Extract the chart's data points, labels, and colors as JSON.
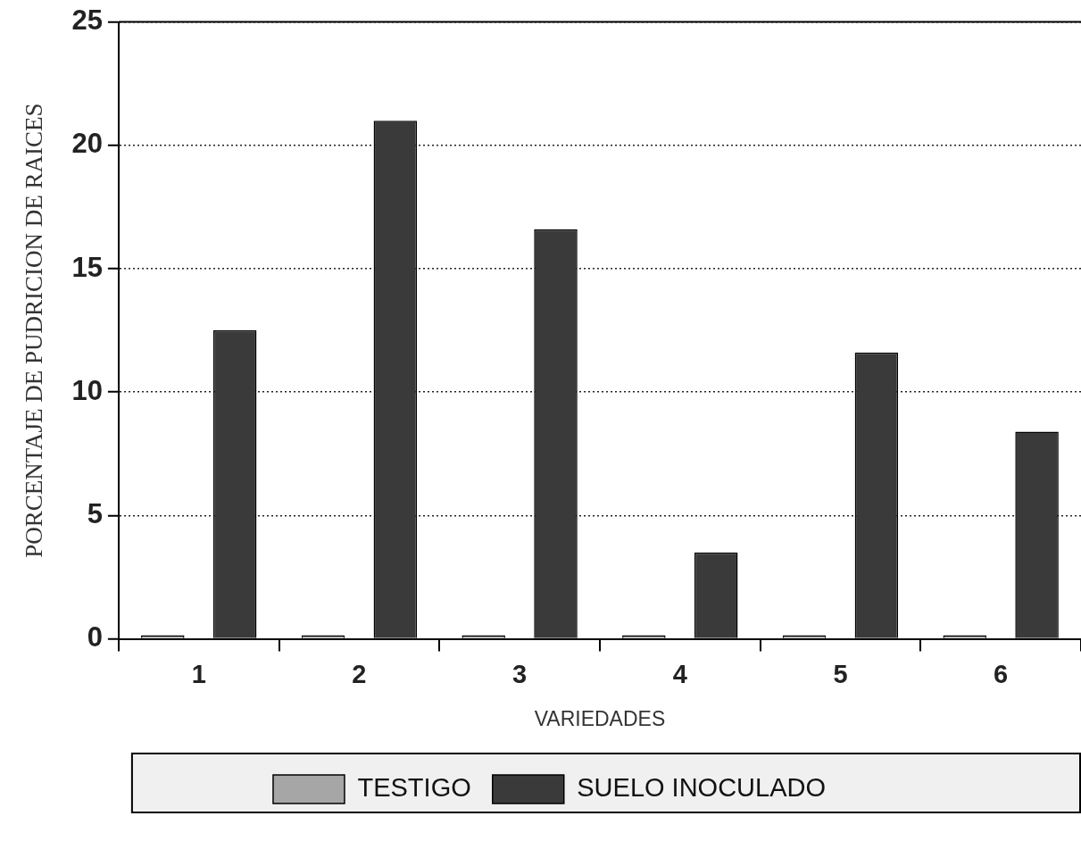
{
  "chart_data": {
    "type": "bar",
    "xlabel": "VARIEDADES",
    "ylabel": "PORCENTAJE DE PUDRICION DE RAICES",
    "categories": [
      "1",
      "2",
      "3",
      "4",
      "5",
      "6"
    ],
    "series": [
      {
        "name": "TESTIGO",
        "color": "#a6a6a6",
        "values": [
          0,
          0,
          0,
          0,
          0,
          0
        ]
      },
      {
        "name": "SUELO INOCULADO",
        "color": "#3a3a3a",
        "values": [
          12.5,
          21,
          16.6,
          3.5,
          11.6,
          8.4
        ]
      }
    ],
    "ylim": [
      0,
      25
    ],
    "yticks": [
      0,
      5,
      10,
      15,
      20,
      25
    ],
    "grid": "y",
    "legend": "bottom"
  }
}
